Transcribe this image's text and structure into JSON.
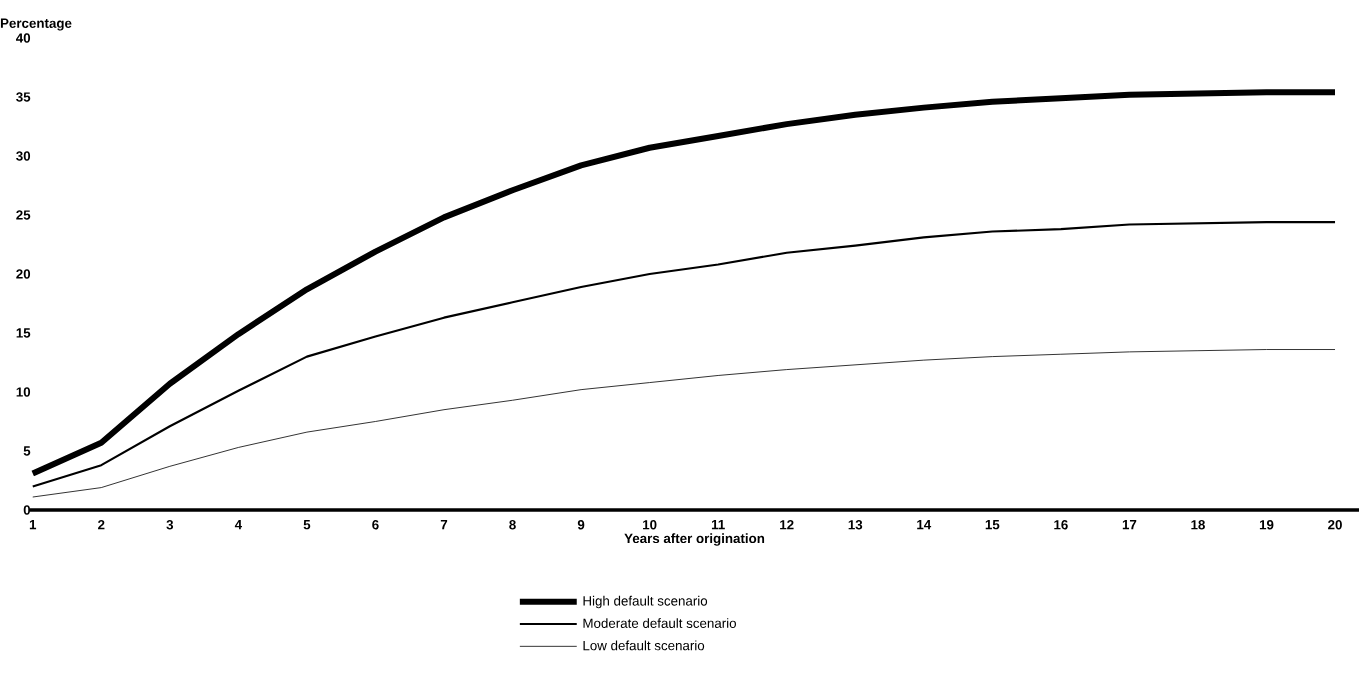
{
  "chart_data": {
    "type": "line",
    "ylabel": "Percentage",
    "xlabel": "Years after origination",
    "categories": [
      "1",
      "2",
      "3",
      "4",
      "5",
      "6",
      "7",
      "8",
      "9",
      "10",
      "11",
      "12",
      "13",
      "14",
      "15",
      "16",
      "17",
      "18",
      "19",
      "20"
    ],
    "ylim": [
      0,
      40
    ],
    "yticks": [
      0,
      5,
      10,
      15,
      20,
      25,
      30,
      35,
      40
    ],
    "legend": "bottom",
    "series": [
      {
        "name": "High default scenario",
        "color": "#000000",
        "values": [
          3.1,
          5.7,
          10.7,
          14.9,
          18.7,
          21.9,
          24.8,
          27.1,
          29.2,
          30.7,
          31.7,
          32.7,
          33.5,
          34.1,
          34.6,
          34.9,
          35.2,
          35.3,
          35.4,
          35.4
        ]
      },
      {
        "name": "Moderate default scenario",
        "color": "#000000",
        "values": [
          2.0,
          3.8,
          7.1,
          10.1,
          13.0,
          14.7,
          16.3,
          17.6,
          18.9,
          20.0,
          20.8,
          21.8,
          22.4,
          23.1,
          23.6,
          23.8,
          24.2,
          24.3,
          24.4,
          24.4
        ]
      },
      {
        "name": "Low default scenario",
        "color": "#000000",
        "values": [
          1.1,
          1.9,
          3.7,
          5.3,
          6.6,
          7.5,
          8.5,
          9.3,
          10.2,
          10.8,
          11.4,
          11.9,
          12.3,
          12.7,
          13.0,
          13.2,
          13.4,
          13.5,
          13.6,
          13.6
        ]
      }
    ]
  }
}
